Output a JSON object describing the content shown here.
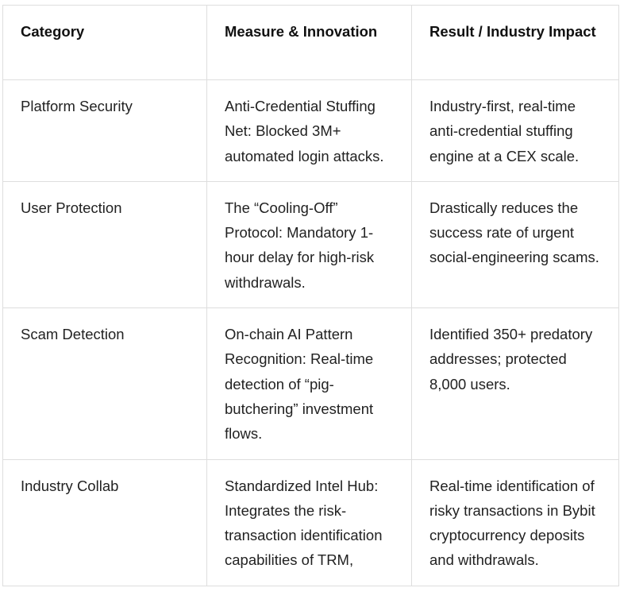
{
  "table": {
    "headers": [
      "Category",
      "Measure & Innovation",
      "Result / Industry Impact"
    ],
    "rows": [
      {
        "category": "Platform Security",
        "measure": "Anti-Credential Stuffing Net: Blocked 3M+ automated login attacks.",
        "result": "Industry-first, real-time anti-credential stuffing engine at a CEX scale."
      },
      {
        "category": "User Protection",
        "measure": "The “Cooling-Off” Protocol: Mandatory 1-hour delay for high-risk withdrawals.",
        "result": "Drastically reduces the success rate of urgent social-engineering scams."
      },
      {
        "category": "Scam Detection",
        "measure": "On-chain AI Pattern Recognition: Real-time detection of “pig-butchering” investment flows.",
        "result": "Identified 350+ predatory addresses; protected 8,000 users."
      },
      {
        "category": "Industry Collab",
        "measure": "Standardized Intel Hub: Integrates the risk-transaction identification capabilities of TRM,",
        "result": "Real-time identification of risky transactions in Bybit cryptocurrency deposits and withdrawals."
      }
    ]
  }
}
